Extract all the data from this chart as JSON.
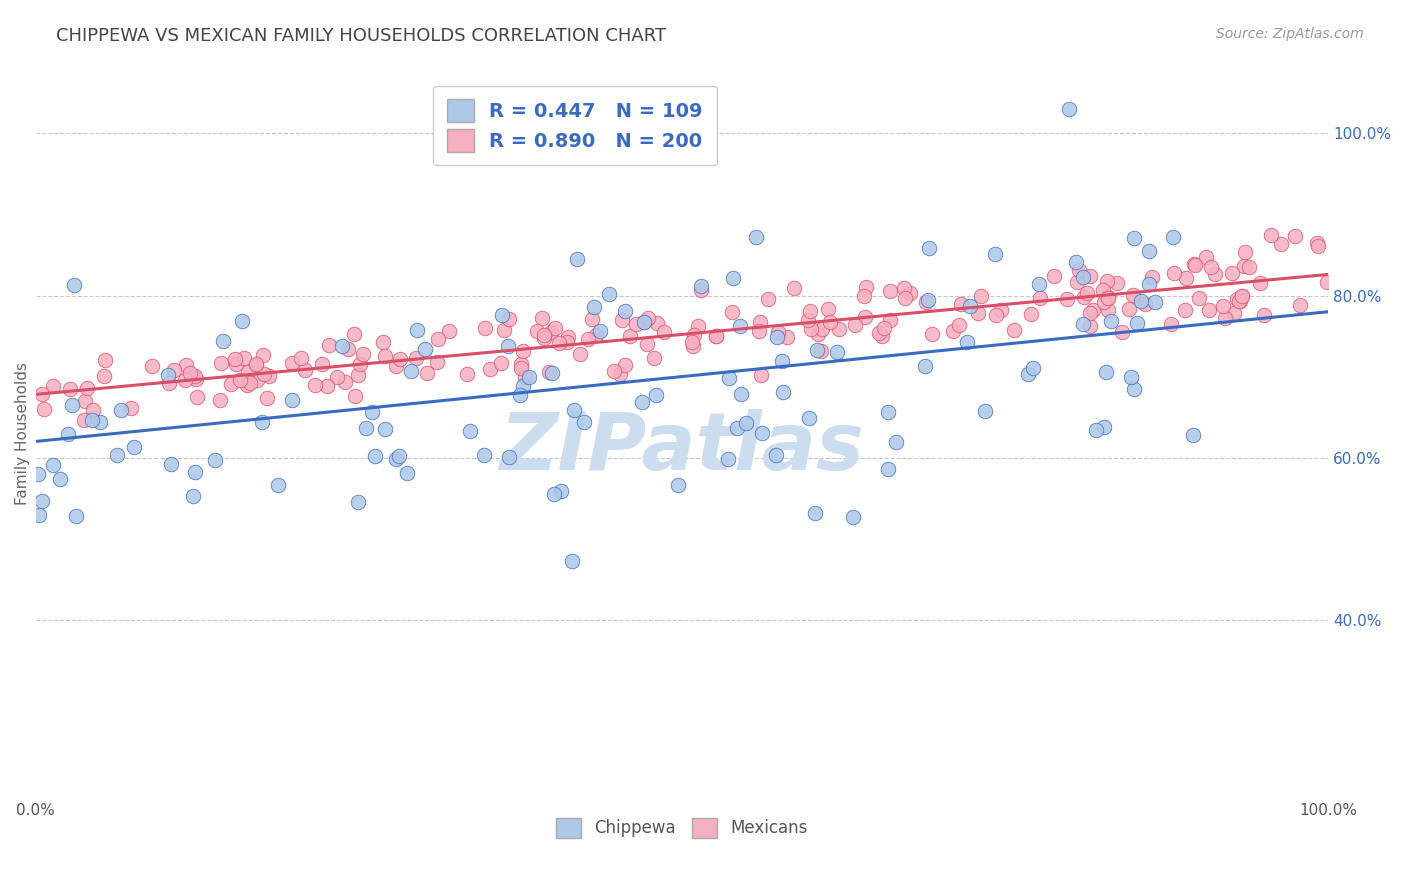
{
  "title": "CHIPPEWA VS MEXICAN FAMILY HOUSEHOLDS CORRELATION CHART",
  "source_text": "Source: ZipAtlas.com",
  "xlabel": "",
  "ylabel": "Family Households",
  "xlim": [
    0,
    1
  ],
  "ylim": [
    0.18,
    1.08
  ],
  "yticks": [
    0.4,
    0.6,
    0.8,
    1.0
  ],
  "yticklabels": [
    "40.0%",
    "60.0%",
    "80.0%",
    "100.0%"
  ],
  "chippewa_color": "#adc8e8",
  "mexican_color": "#f5afc0",
  "chippewa_line_color": "#3a6bbf",
  "mexican_line_color": "#d94f6a",
  "chippewa_R": 0.447,
  "chippewa_N": 109,
  "mexican_R": 0.89,
  "mexican_N": 200,
  "chippewa_intercept": 0.62,
  "chippewa_slope": 0.16,
  "mexican_intercept": 0.678,
  "mexican_slope": 0.148,
  "grid_color": "#c8c8c8",
  "bg_color": "#ffffff",
  "title_color": "#444444",
  "legend_text_color": "#3a6bbf",
  "watermark_text": "ZIPatlas",
  "watermark_color": "#ccddf0",
  "seed": 12
}
